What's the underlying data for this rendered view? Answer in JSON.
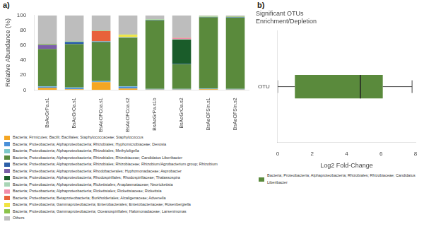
{
  "chart_data": [
    {
      "type": "bar",
      "stacked": true,
      "annotations": [
        "a)"
      ],
      "categories": [
        "BsAoGrPa.s1",
        "BsAoGrOa.s1",
        "BsAoOFCoa.s1",
        "BsAoOFCoa.s2",
        "BsAoGrPa.s1b",
        "BsAoGrOa.s2",
        "BsAoOFSin.s1",
        "BsAoOFSin.s2"
      ],
      "ylabel": "Relative Abundance (%)",
      "ylim": [
        0,
        100
      ],
      "yticks": [
        0,
        20,
        40,
        60,
        80,
        100
      ],
      "grid": false,
      "legend": "bottom",
      "series": [
        {
          "name": "Bacteria; Firmicutes; Bacilli; Bacillales; Staphylococcaceae; Staphylococcus",
          "color": "#F5A623",
          "values": [
            3.0,
            1.0,
            10.5,
            2.0,
            0.5,
            0.5,
            1.0,
            0.5
          ]
        },
        {
          "name": "Bacteria; Proteobacteria; Alphaproteobacteria; Rhizobiales; Hyphomicrobiaceae; Devosia",
          "color": "#4A90D9",
          "values": [
            1.5,
            2.0,
            1.0,
            2.5,
            0.5,
            0.5,
            0.5,
            0.5
          ]
        },
        {
          "name": "Bacteria; Proteobacteria; Alphaproteobacteria; Rhizobiales; Methyloligella",
          "color": "#7EC8C8",
          "values": [
            0.5,
            0.5,
            0.5,
            0.5,
            0.5,
            0.5,
            0.5,
            0.5
          ]
        },
        {
          "name": "Bacteria; Proteobacteria; Alphaproteobacteria; Rhizobiales; Rhizobiaceae; Candidatus Liberibacter",
          "color": "#5A8A3C",
          "values": [
            50.0,
            58.0,
            52.0,
            65.0,
            92.0,
            33.0,
            95.5,
            95.5
          ]
        },
        {
          "name": "Bacteria; Proteobacteria; Alphaproteobacteria; Rhizobiales; Rhizobiaceae; Rhizobium/Agrobacterium group; Rhizobium",
          "color": "#2C5FA8",
          "values": [
            0.0,
            3.0,
            1.0,
            0.5,
            0.5,
            0.5,
            0.5,
            0.5
          ]
        },
        {
          "name": "Bacteria; Proteobacteria; Alphaproteobacteria; Rhodobacterales; Hyphomonadaceae; Asprobacter",
          "color": "#7B5EA7",
          "values": [
            5.5,
            0.0,
            0.0,
            0.0,
            0.0,
            0.0,
            0.0,
            0.0
          ]
        },
        {
          "name": "Bacteria; Proteobacteria; Alphaproteobacteria; Rhodospirillales; Rhodospirillaceae; Thalassospira",
          "color": "#1A5C2A",
          "values": [
            0.0,
            0.0,
            0.0,
            0.0,
            0.0,
            32.5,
            0.0,
            0.0
          ]
        },
        {
          "name": "Bacteria; Proteobacteria; Alphaproteobacteria; Rickettsiales; Anaplasmataceae; Neorickettsia",
          "color": "#A8D5B5",
          "values": [
            0.5,
            0.5,
            0.5,
            0.5,
            0.5,
            0.5,
            0.5,
            0.5
          ]
        },
        {
          "name": "Bacteria; Proteobacteria; Alphaproteobacteria; Rickettsiales; Rickettsiaceae; Rickettsia",
          "color": "#F28DAB",
          "values": [
            0.0,
            0.0,
            0.0,
            0.0,
            0.0,
            2.0,
            0.0,
            0.0
          ]
        },
        {
          "name": "Bacteria; Proteobacteria; Betaproteobacteria; Burkholderiales; Alcaligenaceae; Advenella",
          "color": "#E8623A",
          "values": [
            0.0,
            0.0,
            13.5,
            0.0,
            0.0,
            0.0,
            0.0,
            0.0
          ]
        },
        {
          "name": "Bacteria; Proteobacteria; Gammaproteobacteria; Enterobacterales; Enterobacteriaceae; Rosenbergiella",
          "color": "#F0E442",
          "values": [
            0.0,
            0.0,
            0.0,
            3.0,
            0.0,
            0.0,
            0.0,
            0.0
          ]
        },
        {
          "name": "Bacteria; Proteobacteria; Gammaproteobacteria; Oceanospirillales; Halomonadaceae; Larsenimonas",
          "color": "#8BC34A",
          "values": [
            1.0,
            0.5,
            0.5,
            0.5,
            0.5,
            0.5,
            0.5,
            0.5
          ]
        },
        {
          "name": "Others",
          "color": "#BDBDBD",
          "values": [
            38.0,
            34.5,
            20.5,
            25.5,
            5.0,
            29.5,
            1.0,
            1.5
          ]
        }
      ]
    },
    {
      "type": "box",
      "orientation": "horizontal",
      "annotations": [
        "b)"
      ],
      "title": [
        "Significant OTUs",
        "Enrichment/Depletion"
      ],
      "xlabel": "Log2 Fold-Change",
      "categories": [
        "OTU"
      ],
      "xlim": [
        0,
        8
      ],
      "xticks": [
        0,
        2,
        4,
        6,
        8
      ],
      "grid": false,
      "legend": "bottom",
      "series": [
        {
          "name": "Bacteria; Proteobacteria; Alphaproteobacteria; Rhizobiales; Rhizobiaceae; Candidatus Liberibacter",
          "color": "#5A8A3C",
          "q1": 1.0,
          "median": 4.8,
          "q3": 6.1,
          "whisker_low": 0.0,
          "whisker_high": 7.8
        }
      ]
    }
  ]
}
